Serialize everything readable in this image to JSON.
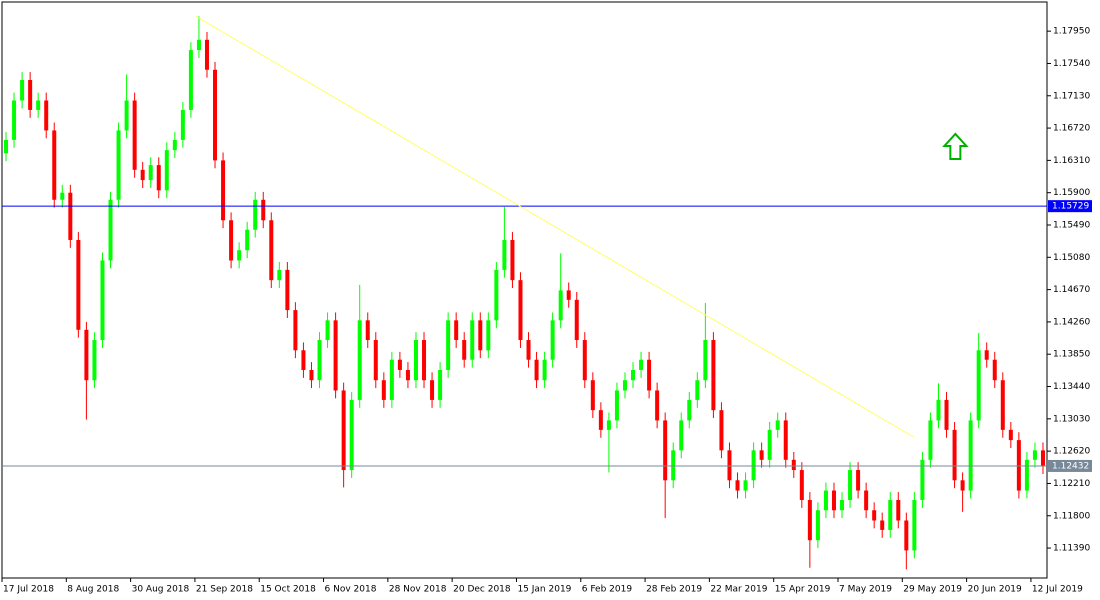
{
  "chart_data": {
    "type": "candlestick",
    "open": [
      1.164,
      1.1657,
      1.1707,
      1.1733,
      1.1695,
      1.1707,
      1.1669,
      1.1581,
      1.159,
      1.153,
      1.1416,
      1.1352,
      1.1403,
      1.1504,
      1.1581,
      1.1669,
      1.1707,
      1.1619,
      1.1606,
      1.1625,
      1.1593,
      1.1644,
      1.1657,
      1.1695,
      1.1771,
      1.1784,
      1.1746,
      1.1631,
      1.1555,
      1.1504,
      1.1517,
      1.1543,
      1.1581,
      1.1555,
      1.1479,
      1.1492,
      1.1441,
      1.139,
      1.1365,
      1.1352,
      1.1403,
      1.1428,
      1.1339,
      1.1238,
      1.1327,
      1.1428,
      1.1403,
      1.1352,
      1.1327,
      1.1378,
      1.1365,
      1.1352,
      1.1403,
      1.1352,
      1.1327,
      1.1365,
      1.1428,
      1.1403,
      1.1378,
      1.1428,
      1.139,
      1.1428,
      1.1492,
      1.153,
      1.1479,
      1.1403,
      1.1378,
      1.1352,
      1.1378,
      1.1428,
      1.1466,
      1.1454,
      1.1403,
      1.1352,
      1.1314,
      1.1289,
      1.1301,
      1.1339,
      1.1352,
      1.1365,
      1.1378,
      1.1339,
      1.1301,
      1.1225,
      1.1263,
      1.1301,
      1.1327,
      1.1352,
      1.1403,
      1.1314,
      1.1263,
      1.1225,
      1.1212,
      1.1225,
      1.1263,
      1.1251,
      1.1289,
      1.1301,
      1.1251,
      1.1238,
      1.12,
      1.1149,
      1.1187,
      1.1212,
      1.1187,
      1.12,
      1.1238,
      1.1212,
      1.1187,
      1.1174,
      1.1162,
      1.12,
      1.1174,
      1.1136,
      1.12,
      1.1251,
      1.1301,
      1.1327,
      1.1289,
      1.1225,
      1.1212,
      1.1301,
      1.139,
      1.1378,
      1.1352,
      1.1289,
      1.1276,
      1.1212,
      1.1251,
      1.1263
    ],
    "high": [
      1.1667,
      1.1717,
      1.1743,
      1.1743,
      1.1717,
      1.1717,
      1.1679,
      1.16,
      1.16,
      1.154,
      1.1426,
      1.1413,
      1.1514,
      1.1591,
      1.1679,
      1.174,
      1.1717,
      1.1629,
      1.1635,
      1.1635,
      1.1654,
      1.1667,
      1.1705,
      1.1781,
      1.1814,
      1.1794,
      1.1756,
      1.1641,
      1.1565,
      1.1527,
      1.1553,
      1.1591,
      1.1591,
      1.1565,
      1.1502,
      1.1502,
      1.1451,
      1.14,
      1.1375,
      1.1413,
      1.1438,
      1.1438,
      1.1349,
      1.1337,
      1.1473,
      1.1438,
      1.1413,
      1.1362,
      1.1388,
      1.1388,
      1.1375,
      1.1413,
      1.1413,
      1.1362,
      1.1375,
      1.1438,
      1.1438,
      1.1413,
      1.1438,
      1.1438,
      1.1438,
      1.1502,
      1.1572,
      1.154,
      1.1489,
      1.1413,
      1.1388,
      1.1388,
      1.1438,
      1.1513,
      1.1476,
      1.1464,
      1.1413,
      1.1362,
      1.1324,
      1.1311,
      1.1349,
      1.1362,
      1.1375,
      1.1388,
      1.1388,
      1.1349,
      1.1311,
      1.1273,
      1.1311,
      1.1337,
      1.1362,
      1.145,
      1.1413,
      1.1324,
      1.1273,
      1.1235,
      1.1235,
      1.1273,
      1.1273,
      1.1299,
      1.1311,
      1.1311,
      1.1261,
      1.1248,
      1.121,
      1.1197,
      1.1222,
      1.1222,
      1.121,
      1.1248,
      1.1248,
      1.1222,
      1.1197,
      1.1184,
      1.121,
      1.121,
      1.1184,
      1.121,
      1.1261,
      1.1311,
      1.1348,
      1.1337,
      1.1299,
      1.1235,
      1.1311,
      1.1412,
      1.14,
      1.1388,
      1.1362,
      1.1299,
      1.1286,
      1.1261,
      1.1273,
      1.1273
    ],
    "low": [
      1.163,
      1.1647,
      1.1697,
      1.1685,
      1.1685,
      1.1659,
      1.1571,
      1.1571,
      1.152,
      1.1406,
      1.1302,
      1.1342,
      1.1393,
      1.1494,
      1.1571,
      1.1659,
      1.1609,
      1.1596,
      1.1596,
      1.1583,
      1.1583,
      1.1634,
      1.1647,
      1.1685,
      1.1761,
      1.1736,
      1.1621,
      1.1545,
      1.1494,
      1.1494,
      1.1507,
      1.1533,
      1.1545,
      1.1469,
      1.1469,
      1.1431,
      1.138,
      1.1355,
      1.1342,
      1.1342,
      1.1393,
      1.1329,
      1.1216,
      1.1228,
      1.1317,
      1.1393,
      1.1342,
      1.1317,
      1.1317,
      1.1355,
      1.1342,
      1.1342,
      1.1342,
      1.1317,
      1.1317,
      1.1355,
      1.1393,
      1.1368,
      1.1368,
      1.138,
      1.138,
      1.1418,
      1.1482,
      1.1469,
      1.1393,
      1.1368,
      1.1342,
      1.1342,
      1.1368,
      1.1418,
      1.1444,
      1.1393,
      1.1342,
      1.1304,
      1.1279,
      1.1235,
      1.1291,
      1.1329,
      1.1342,
      1.1355,
      1.1329,
      1.1291,
      1.1177,
      1.1215,
      1.1253,
      1.1291,
      1.1317,
      1.1342,
      1.1304,
      1.1253,
      1.1215,
      1.1202,
      1.1202,
      1.1215,
      1.1241,
      1.1241,
      1.1279,
      1.1241,
      1.1228,
      1.119,
      1.1114,
      1.1139,
      1.1177,
      1.1177,
      1.1177,
      1.119,
      1.1202,
      1.1177,
      1.1164,
      1.1152,
      1.1152,
      1.1164,
      1.1112,
      1.1126,
      1.119,
      1.1241,
      1.1291,
      1.1279,
      1.1215,
      1.1185,
      1.1202,
      1.1291,
      1.1368,
      1.1342,
      1.1279,
      1.1266,
      1.1202,
      1.1202,
      1.1241,
      1.1233
    ],
    "close": [
      1.1657,
      1.1707,
      1.1733,
      1.1695,
      1.1707,
      1.1669,
      1.1581,
      1.159,
      1.153,
      1.1416,
      1.1352,
      1.1403,
      1.1504,
      1.1581,
      1.1669,
      1.1707,
      1.1619,
      1.1606,
      1.1625,
      1.1593,
      1.1644,
      1.1657,
      1.1695,
      1.1771,
      1.1784,
      1.1746,
      1.1631,
      1.1555,
      1.1504,
      1.1517,
      1.1543,
      1.1581,
      1.1555,
      1.1479,
      1.1492,
      1.1441,
      1.139,
      1.1365,
      1.1352,
      1.1403,
      1.1428,
      1.1339,
      1.1238,
      1.1327,
      1.1428,
      1.1403,
      1.1352,
      1.1327,
      1.1378,
      1.1365,
      1.1352,
      1.1403,
      1.1352,
      1.1327,
      1.1365,
      1.1428,
      1.1403,
      1.1378,
      1.1428,
      1.139,
      1.1428,
      1.1492,
      1.153,
      1.1479,
      1.1403,
      1.1378,
      1.1352,
      1.1378,
      1.1428,
      1.1466,
      1.1454,
      1.1403,
      1.1352,
      1.1314,
      1.1289,
      1.1301,
      1.1339,
      1.1352,
      1.1365,
      1.1378,
      1.1339,
      1.1301,
      1.1225,
      1.1263,
      1.1301,
      1.1327,
      1.1352,
      1.1403,
      1.1314,
      1.1263,
      1.1225,
      1.1212,
      1.1225,
      1.1263,
      1.1251,
      1.1289,
      1.1301,
      1.1251,
      1.1238,
      1.12,
      1.1149,
      1.1187,
      1.1212,
      1.1187,
      1.12,
      1.1238,
      1.1212,
      1.1187,
      1.1174,
      1.1162,
      1.12,
      1.1174,
      1.1136,
      1.12,
      1.1251,
      1.1301,
      1.1327,
      1.1289,
      1.1225,
      1.1212,
      1.1301,
      1.139,
      1.1378,
      1.1352,
      1.1289,
      1.1276,
      1.1212,
      1.1251,
      1.1263,
      1.1243
    ],
    "up_color": "#00ff00",
    "down_color": "#ff0000",
    "xlim": [
      0,
      130
    ],
    "xticks": [
      {
        "value": 0,
        "label": "17 Jul 2018"
      },
      {
        "value": 8,
        "label": "8 Aug 2018"
      },
      {
        "value": 16,
        "label": "30 Aug 2018"
      },
      {
        "value": 24,
        "label": "21 Sep 2018"
      },
      {
        "value": 32,
        "label": "15 Oct 2018"
      },
      {
        "value": 40,
        "label": "6 Nov 2018"
      },
      {
        "value": 48,
        "label": "28 Nov 2018"
      },
      {
        "value": 56,
        "label": "20 Dec 2018"
      },
      {
        "value": 64,
        "label": "15 Jan 2019"
      },
      {
        "value": 72,
        "label": "6 Feb 2019"
      },
      {
        "value": 80,
        "label": "28 Feb 2019"
      },
      {
        "value": 88,
        "label": "22 Mar 2019"
      },
      {
        "value": 96,
        "label": "15 Apr 2019"
      },
      {
        "value": 104,
        "label": "7 May 2019"
      },
      {
        "value": 112,
        "label": "29 May 2019"
      },
      {
        "value": 120,
        "label": "20 Jun 2019"
      },
      {
        "value": 128,
        "label": "12 Jul 2019"
      }
    ],
    "ylim": [
      1.1101,
      1.1832
    ],
    "yticks": [
      {
        "value": 1.1795,
        "label": "1.17950"
      },
      {
        "value": 1.1754,
        "label": "1.17540"
      },
      {
        "value": 1.1713,
        "label": "1.17130"
      },
      {
        "value": 1.1672,
        "label": "1.16720"
      },
      {
        "value": 1.1631,
        "label": "1.16310"
      },
      {
        "value": 1.159,
        "label": "1.15900"
      },
      {
        "value": 1.1549,
        "label": "1.15490"
      },
      {
        "value": 1.1508,
        "label": "1.15080"
      },
      {
        "value": 1.1467,
        "label": "1.14670"
      },
      {
        "value": 1.1426,
        "label": "1.14260"
      },
      {
        "value": 1.1385,
        "label": "1.13850"
      },
      {
        "value": 1.1344,
        "label": "1.13440"
      },
      {
        "value": 1.1303,
        "label": "1.13030"
      },
      {
        "value": 1.1262,
        "label": "1.12620"
      },
      {
        "value": 1.1221,
        "label": "1.12210"
      },
      {
        "value": 1.118,
        "label": "1.11800"
      },
      {
        "value": 1.1139,
        "label": "1.11390"
      }
    ],
    "hlines": [
      {
        "value": 1.15729,
        "label": "1.15729",
        "color": "#0000ff"
      },
      {
        "value": 1.12432,
        "label": "1.12432",
        "color": "#778899"
      }
    ],
    "trendline": {
      "x": [
        24.1,
        113.4
      ],
      "y": [
        1.1814,
        1.128
      ],
      "color": "#ffff66"
    },
    "signal": {
      "x": 118.6,
      "y": 1.1648,
      "color": "#00b000"
    }
  }
}
